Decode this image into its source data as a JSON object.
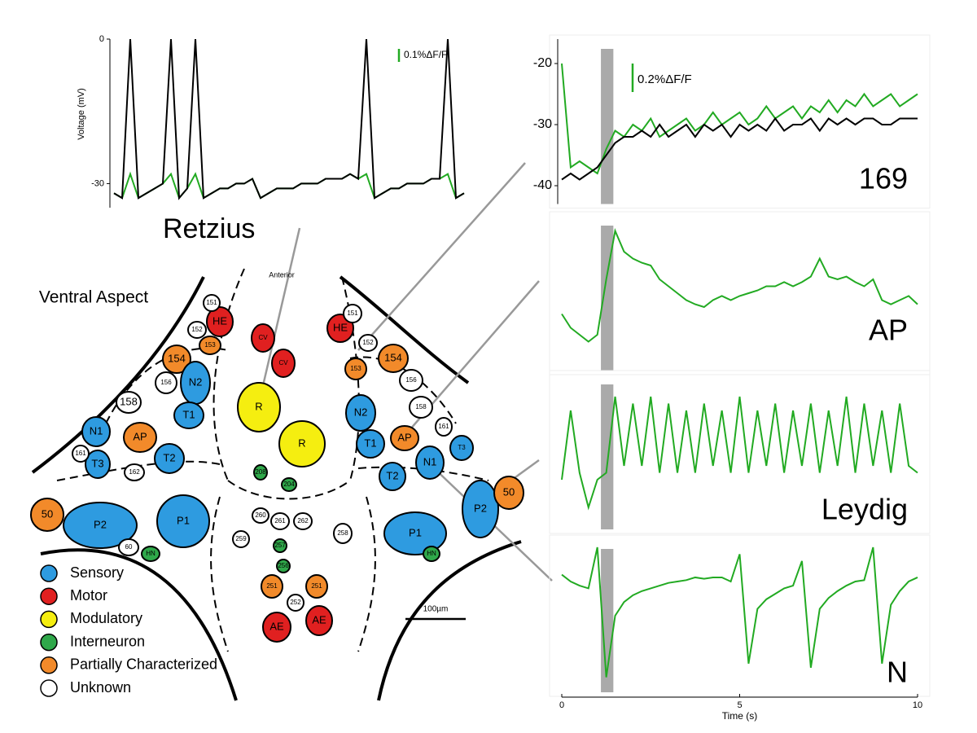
{
  "chart_data": [
    {
      "type": "line",
      "label": "Retzius",
      "ylabel": "Voltage (mV)",
      "ylim": [
        -35,
        0
      ],
      "yticks": [
        0,
        -30
      ],
      "scale_label": "0.1%ΔF/F",
      "series": [
        {
          "color": "#22aa22",
          "values": [
            -32,
            -33,
            -28,
            -33,
            -32,
            -31,
            -30,
            -28,
            -33,
            -31,
            -28,
            -33,
            -32,
            -31,
            -31,
            -30,
            -30,
            -29,
            -33,
            -32,
            -31,
            -31,
            -31,
            -30,
            -30,
            -30,
            -29,
            -29,
            -29,
            -28,
            -29,
            -28,
            -33,
            -32,
            -31,
            -31,
            -30,
            -30,
            -30,
            -29,
            -29,
            -28,
            -33,
            -32
          ]
        },
        {
          "color": "#000000",
          "values": [
            -32,
            -33,
            0,
            -33,
            -32,
            -31,
            -30,
            0,
            -33,
            -31,
            0,
            -33,
            -32,
            -31,
            -31,
            -30,
            -30,
            -29,
            -33,
            -32,
            -31,
            -31,
            -31,
            -30,
            -30,
            -30,
            -29,
            -29,
            -29,
            -28,
            -29,
            0,
            -33,
            -32,
            -31,
            -31,
            -30,
            -30,
            -30,
            -29,
            -29,
            0,
            -33,
            -32
          ]
        }
      ]
    },
    {
      "type": "line",
      "label": "169",
      "ylim": [
        -43,
        -16
      ],
      "yticks": [
        -20,
        -30,
        -40
      ],
      "xlim": [
        0,
        10
      ],
      "stimulus": [
        1.1,
        1.45
      ],
      "scale_label": "0.2%ΔF/F",
      "x": [
        0,
        0.25,
        0.5,
        0.75,
        1,
        1.25,
        1.5,
        1.75,
        2,
        2.25,
        2.5,
        2.75,
        3,
        3.25,
        3.5,
        3.75,
        4,
        4.25,
        4.5,
        4.75,
        5,
        5.25,
        5.5,
        5.75,
        6,
        6.25,
        6.5,
        6.75,
        7,
        7.25,
        7.5,
        7.75,
        8,
        8.25,
        8.5,
        8.75,
        9,
        9.25,
        9.5,
        9.75,
        10
      ],
      "series": [
        {
          "color": "#22aa22",
          "values": [
            -20,
            -37,
            -36,
            -37,
            -38,
            -34,
            -31,
            -32,
            -30,
            -31,
            -29,
            -32,
            -31,
            -30,
            -29,
            -31,
            -30,
            -28,
            -30,
            -29,
            -28,
            -30,
            -29,
            -27,
            -29,
            -28,
            -27,
            -29,
            -27,
            -28,
            -26,
            -28,
            -26,
            -27,
            -25,
            -27,
            -26,
            -25,
            -27,
            -26,
            -25
          ]
        },
        {
          "color": "#000000",
          "values": [
            -39,
            -38,
            -39,
            -38,
            -37,
            -35,
            -33,
            -32,
            -32,
            -31,
            -32,
            -30,
            -32,
            -31,
            -30,
            -32,
            -30,
            -31,
            -30,
            -32,
            -30,
            -31,
            -30,
            -31,
            -29,
            -31,
            -30,
            -30,
            -29,
            -31,
            -29,
            -30,
            -29,
            -30,
            -29,
            -29,
            -30,
            -30,
            -29,
            -29,
            -29
          ]
        }
      ]
    },
    {
      "type": "line",
      "label": "AP",
      "ylim": [
        0,
        100
      ],
      "xlim": [
        0,
        10
      ],
      "stimulus": [
        1.1,
        1.45
      ],
      "x": [
        0,
        0.25,
        0.5,
        0.75,
        1,
        1.25,
        1.5,
        1.75,
        2,
        2.25,
        2.5,
        2.75,
        3,
        3.25,
        3.5,
        3.75,
        4,
        4.25,
        4.5,
        4.75,
        5,
        5.25,
        5.5,
        5.75,
        6,
        6.25,
        6.5,
        6.75,
        7,
        7.25,
        7.5,
        7.75,
        8,
        8.25,
        8.5,
        8.75,
        9,
        9.25,
        9.5,
        9.75,
        10
      ],
      "series": [
        {
          "color": "#22aa22",
          "values": [
            35,
            25,
            20,
            15,
            20,
            60,
            95,
            80,
            75,
            72,
            70,
            60,
            55,
            50,
            45,
            42,
            40,
            45,
            48,
            45,
            48,
            50,
            52,
            55,
            55,
            58,
            55,
            58,
            62,
            75,
            62,
            60,
            62,
            58,
            55,
            60,
            45,
            42,
            45,
            48,
            42
          ]
        }
      ]
    },
    {
      "type": "line",
      "label": "Leydig",
      "ylim": [
        0,
        100
      ],
      "xlim": [
        0,
        10
      ],
      "stimulus": [
        1.1,
        1.45
      ],
      "x": [
        0,
        0.25,
        0.5,
        0.75,
        1,
        1.25,
        1.5,
        1.75,
        2,
        2.25,
        2.5,
        2.75,
        3,
        3.25,
        3.5,
        3.75,
        4,
        4.25,
        4.5,
        4.75,
        5,
        5.25,
        5.5,
        5.75,
        6,
        6.25,
        6.5,
        6.75,
        7,
        7.25,
        7.5,
        7.75,
        8,
        8.25,
        8.5,
        8.75,
        9,
        9.25,
        9.5,
        9.75,
        10
      ],
      "series": [
        {
          "color": "#22aa22",
          "values": [
            30,
            80,
            35,
            10,
            30,
            35,
            90,
            40,
            85,
            40,
            90,
            35,
            85,
            35,
            80,
            35,
            85,
            40,
            80,
            35,
            90,
            35,
            80,
            40,
            85,
            35,
            80,
            40,
            85,
            35,
            80,
            40,
            90,
            35,
            85,
            40,
            80,
            35,
            85,
            40,
            35
          ]
        }
      ]
    },
    {
      "type": "line",
      "label": "N",
      "ylim": [
        0,
        100
      ],
      "xlim": [
        0,
        10
      ],
      "xticks": [
        0,
        5,
        10
      ],
      "xlabel": "Time (s)",
      "stimulus": [
        1.1,
        1.45
      ],
      "x": [
        0,
        0.25,
        0.5,
        0.75,
        1,
        1.25,
        1.5,
        1.75,
        2,
        2.25,
        2.5,
        2.75,
        3,
        3.25,
        3.5,
        3.75,
        4,
        4.25,
        4.5,
        4.75,
        5,
        5.25,
        5.5,
        5.75,
        6,
        6.25,
        6.5,
        6.75,
        7,
        7.25,
        7.5,
        7.75,
        8,
        8.25,
        8.5,
        8.75,
        9,
        9.25,
        9.5,
        9.75,
        10
      ],
      "series": [
        {
          "color": "#22aa22",
          "values": [
            80,
            75,
            72,
            70,
            100,
            5,
            50,
            60,
            65,
            68,
            70,
            72,
            74,
            75,
            76,
            78,
            77,
            78,
            78,
            75,
            95,
            15,
            55,
            62,
            66,
            70,
            72,
            90,
            12,
            55,
            63,
            68,
            72,
            75,
            76,
            100,
            15,
            58,
            68,
            75,
            78
          ]
        }
      ]
    }
  ],
  "diagram": {
    "title": "Ventral Aspect",
    "anterior": "Anterior",
    "scale_bar": "100µm",
    "legend": [
      {
        "label": "Sensory",
        "color": "#2e9be0"
      },
      {
        "label": "Motor",
        "color": "#e02020"
      },
      {
        "label": "Modulatory",
        "color": "#f5ee10"
      },
      {
        "label": "Interneuron",
        "color": "#2fa84a"
      },
      {
        "label": "Partially Characterized",
        "color": "#f28a2a"
      },
      {
        "label": "Unknown",
        "color": "#ffffff"
      }
    ],
    "nodes": [
      {
        "label": "HE",
        "color": "#e02020"
      },
      {
        "label": "CV",
        "color": "#e02020"
      },
      {
        "label": "CV",
        "color": "#e02020"
      },
      {
        "label": "HE",
        "color": "#e02020"
      },
      {
        "label": "154",
        "color": "#f28a2a"
      },
      {
        "label": "153",
        "color": "#f28a2a"
      },
      {
        "label": "N2",
        "color": "#2e9be0"
      },
      {
        "label": "R",
        "color": "#f5ee10"
      },
      {
        "label": "R",
        "color": "#f5ee10"
      },
      {
        "label": "AP",
        "color": "#f28a2a"
      },
      {
        "label": "N1",
        "color": "#2e9be0"
      },
      {
        "label": "T1",
        "color": "#2e9be0"
      },
      {
        "label": "T2",
        "color": "#2e9be0"
      },
      {
        "label": "T3",
        "color": "#2e9be0"
      },
      {
        "label": "153",
        "color": "#f28a2a"
      },
      {
        "label": "154",
        "color": "#f28a2a"
      },
      {
        "label": "N2",
        "color": "#2e9be0"
      },
      {
        "label": "T1",
        "color": "#2e9be0"
      },
      {
        "label": "AP",
        "color": "#f28a2a"
      },
      {
        "label": "T3",
        "color": "#2e9be0"
      },
      {
        "label": "N1",
        "color": "#2e9be0"
      },
      {
        "label": "T2",
        "color": "#2e9be0"
      },
      {
        "label": "50",
        "color": "#f28a2a"
      },
      {
        "label": "P2",
        "color": "#2e9be0"
      },
      {
        "label": "P1",
        "color": "#2e9be0"
      },
      {
        "label": "P1",
        "color": "#2e9be0"
      },
      {
        "label": "P2",
        "color": "#2e9be0"
      },
      {
        "label": "50",
        "color": "#f28a2a"
      },
      {
        "label": "AE",
        "color": "#e02020"
      },
      {
        "label": "AE",
        "color": "#e02020"
      },
      {
        "label": "251",
        "color": "#f28a2a"
      },
      {
        "label": "251",
        "color": "#f28a2a"
      },
      {
        "label": "151",
        "color": "#ffffff"
      },
      {
        "label": "152",
        "color": "#ffffff"
      },
      {
        "label": "156",
        "color": "#ffffff"
      },
      {
        "label": "158",
        "color": "#ffffff"
      },
      {
        "label": "161",
        "color": "#ffffff"
      },
      {
        "label": "162",
        "color": "#ffffff"
      },
      {
        "label": "151",
        "color": "#ffffff"
      },
      {
        "label": "152",
        "color": "#ffffff"
      },
      {
        "label": "156",
        "color": "#ffffff"
      },
      {
        "label": "158",
        "color": "#ffffff"
      },
      {
        "label": "161",
        "color": "#ffffff"
      },
      {
        "label": "60",
        "color": "#ffffff"
      },
      {
        "label": "HN",
        "color": "#2fa84a"
      },
      {
        "label": "257",
        "color": "#2fa84a"
      },
      {
        "label": "256",
        "color": "#2fa84a"
      },
      {
        "label": "HN",
        "color": "#2fa84a"
      },
      {
        "label": "208",
        "color": "#2fa84a"
      },
      {
        "label": "204",
        "color": "#2fa84a"
      },
      {
        "label": "261",
        "color": "#ffffff"
      },
      {
        "label": "262",
        "color": "#ffffff"
      },
      {
        "label": "260",
        "color": "#ffffff"
      },
      {
        "label": "258",
        "color": "#ffffff"
      },
      {
        "label": "259",
        "color": "#ffffff"
      },
      {
        "label": "252",
        "color": "#ffffff"
      }
    ]
  }
}
